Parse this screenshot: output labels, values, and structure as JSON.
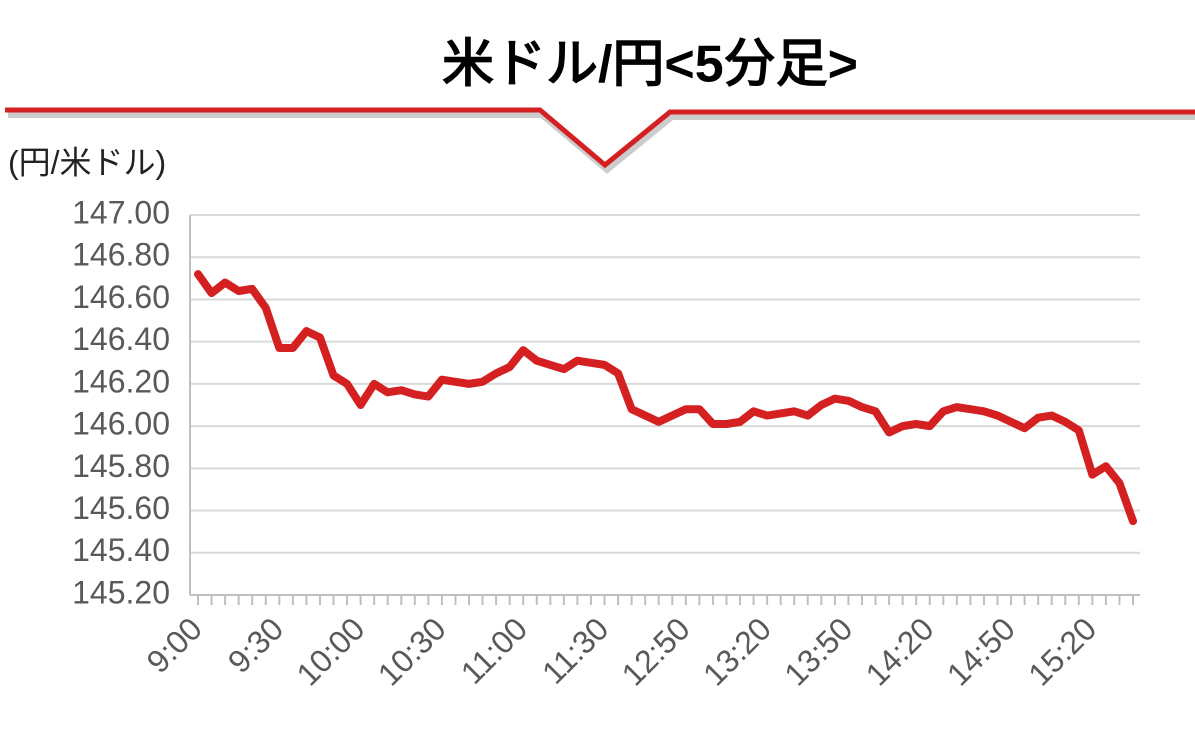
{
  "chart_data": {
    "type": "line",
    "title": "米ドル/円<5分足>",
    "y_label": "(円/米ドル)",
    "categories": [
      "9:00",
      null,
      null,
      null,
      null,
      null,
      "9:30",
      null,
      null,
      null,
      null,
      null,
      "10:00",
      null,
      null,
      null,
      null,
      null,
      "10:30",
      null,
      null,
      null,
      null,
      null,
      "11:00",
      null,
      null,
      null,
      null,
      null,
      "11:30",
      null,
      null,
      null,
      null,
      null,
      "12:50",
      null,
      null,
      null,
      null,
      null,
      "13:20",
      null,
      null,
      null,
      null,
      null,
      "13:50",
      null,
      null,
      null,
      null,
      null,
      "14:20",
      null,
      null,
      null,
      null,
      null,
      "14:50",
      null,
      null,
      null,
      null,
      null,
      "15:20",
      null,
      null,
      null
    ],
    "values": [
      146.72,
      146.63,
      146.68,
      146.64,
      146.65,
      146.56,
      146.37,
      146.37,
      146.45,
      146.42,
      146.24,
      146.2,
      146.1,
      146.2,
      146.16,
      146.17,
      146.15,
      146.14,
      146.22,
      146.21,
      146.2,
      146.21,
      146.25,
      146.28,
      146.36,
      146.31,
      146.29,
      146.27,
      146.31,
      146.3,
      146.29,
      146.25,
      146.08,
      146.05,
      146.02,
      146.05,
      146.08,
      146.08,
      146.01,
      146.01,
      146.02,
      146.07,
      146.05,
      146.06,
      146.07,
      146.05,
      146.1,
      146.13,
      146.12,
      146.09,
      146.07,
      145.97,
      146.0,
      146.01,
      146.0,
      146.07,
      146.09,
      146.08,
      146.07,
      146.05,
      146.02,
      145.99,
      146.04,
      146.05,
      146.02,
      145.98,
      145.77,
      145.81,
      145.73,
      145.55
    ],
    "color": "#d42020",
    "ylim": [
      145.2,
      147.0
    ],
    "yticks": [
      {
        "value": 145.2,
        "label": "145.20"
      },
      {
        "value": 145.4,
        "label": "145.40"
      },
      {
        "value": 145.6,
        "label": "145.60"
      },
      {
        "value": 145.8,
        "label": "145.80"
      },
      {
        "value": 146.0,
        "label": "146.00"
      },
      {
        "value": 146.2,
        "label": "146.20"
      },
      {
        "value": 146.4,
        "label": "146.40"
      },
      {
        "value": 146.6,
        "label": "146.60"
      },
      {
        "value": 146.8,
        "label": "146.80"
      },
      {
        "value": 147.0,
        "label": "147.00"
      }
    ],
    "grid": true
  }
}
